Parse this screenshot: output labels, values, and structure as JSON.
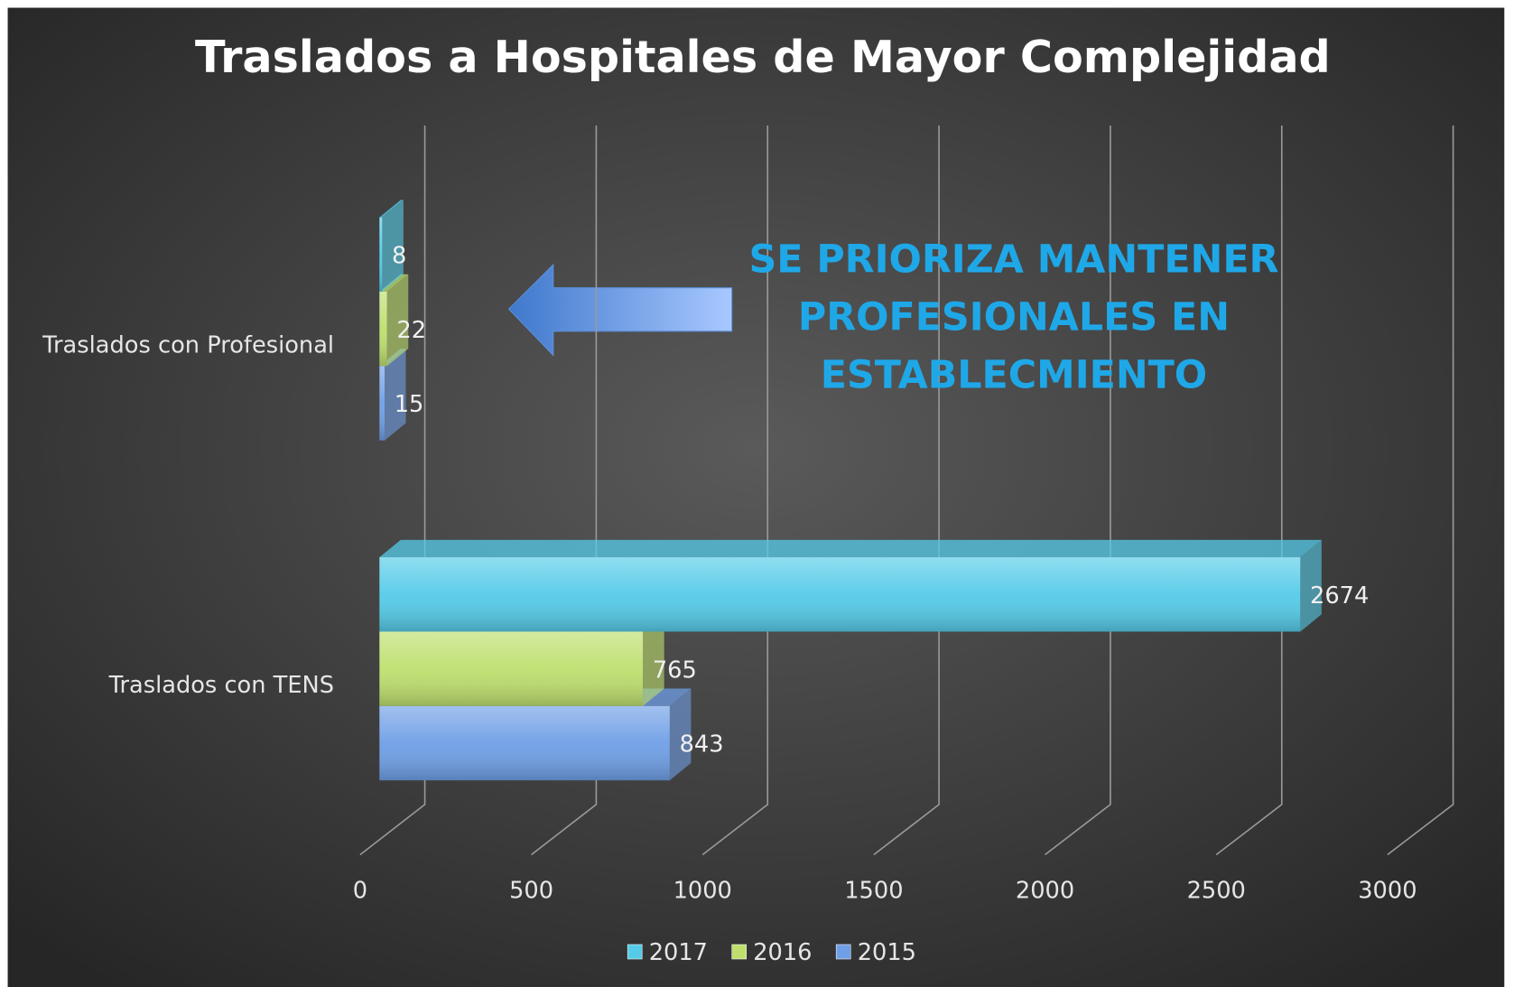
{
  "chart_data": {
    "type": "bar3d_horizontal",
    "title": "Traslados a Hospitales de Mayor Complejidad",
    "categories": [
      "Traslados con TENS",
      "Traslados con Profesional"
    ],
    "series": [
      {
        "name": "2015",
        "color": "#6f9fe6",
        "values": [
          843,
          15
        ]
      },
      {
        "name": "2016",
        "color": "#bedf6e",
        "values": [
          765,
          22
        ]
      },
      {
        "name": "2017",
        "color": "#55cbe8",
        "values": [
          2674,
          8
        ]
      }
    ],
    "xlim": [
      0,
      3000
    ],
    "xticks": [
      0,
      500,
      1000,
      1500,
      2000,
      2500,
      3000
    ],
    "grid": true,
    "legend": "bottom",
    "annotation": [
      "SE PRIORIZA MANTENER",
      "PROFESIONALES EN",
      "ESTABLECMIENTO"
    ]
  }
}
